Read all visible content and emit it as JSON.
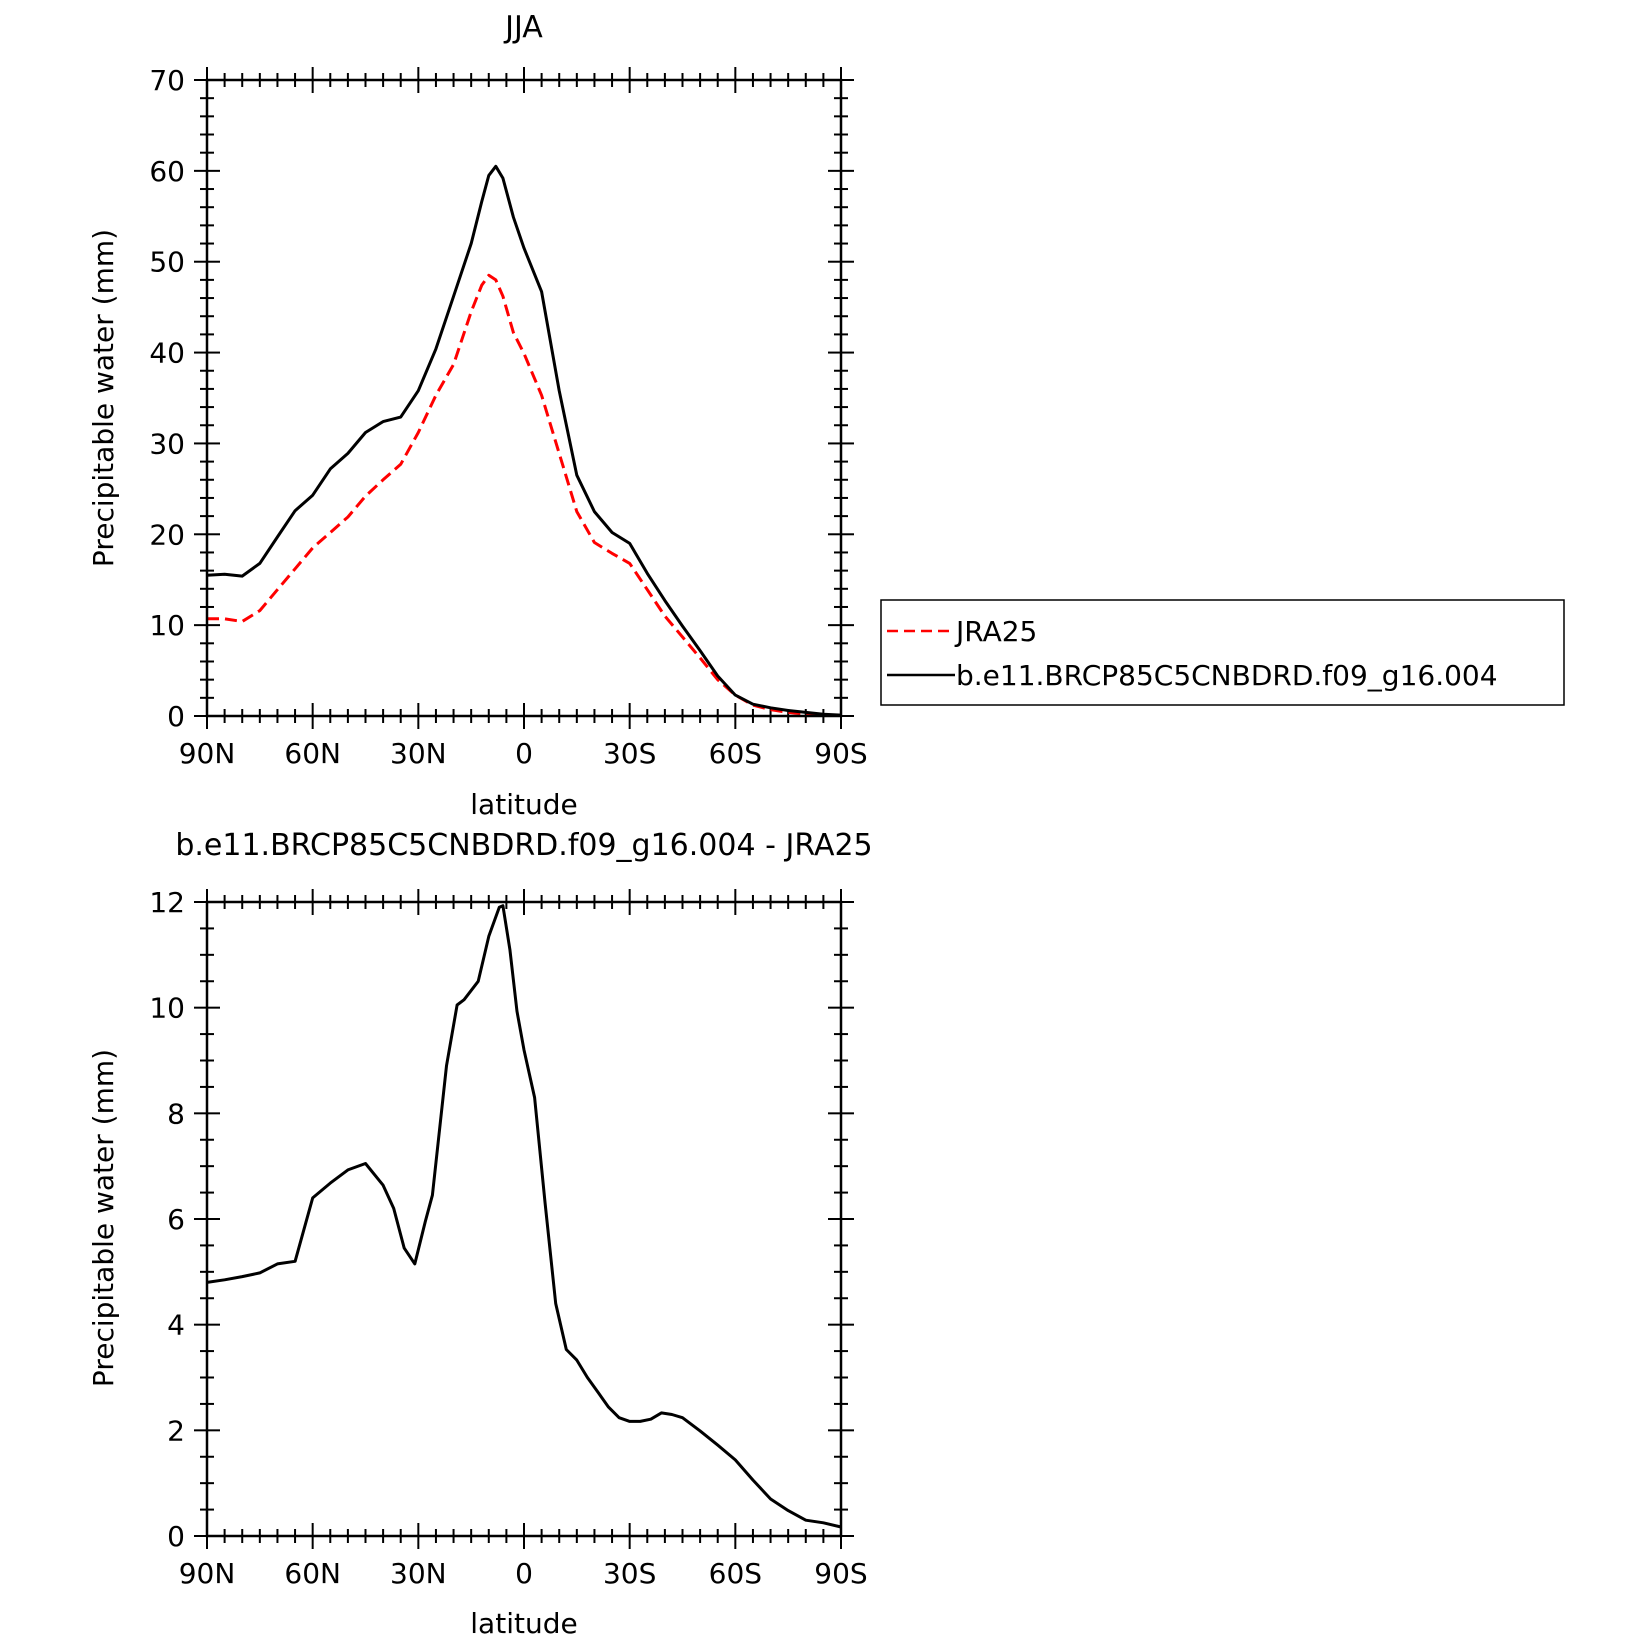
{
  "chart_data": [
    {
      "type": "line",
      "title": "JJA",
      "xlabel": "latitude",
      "ylabel": "Precipitable water (mm)",
      "xlim": [
        90,
        -90
      ],
      "ylim": [
        0,
        70
      ],
      "xticks": [
        90,
        60,
        30,
        0,
        -30,
        -60,
        -90
      ],
      "xtick_labels": [
        "90N",
        "60N",
        "30N",
        "0",
        "30S",
        "60S",
        "90S"
      ],
      "yticks": [
        0,
        10,
        20,
        30,
        40,
        50,
        60,
        70
      ],
      "ytick_labels": [
        "0",
        "10",
        "20",
        "30",
        "40",
        "50",
        "60",
        "70"
      ],
      "legend": "right",
      "series": [
        {
          "name": "JRA25",
          "color": "#ff0000",
          "style": "dashed",
          "x": [
            90,
            85,
            80,
            75,
            70,
            65,
            60,
            55,
            50,
            45,
            40,
            35,
            30,
            25,
            20,
            15,
            12,
            10,
            8,
            6,
            3,
            0,
            -5,
            -10,
            -15,
            -20,
            -25,
            -30,
            -35,
            -40,
            -45,
            -50,
            -55,
            -60,
            -65,
            -70,
            -75,
            -80,
            -85,
            -90
          ],
          "y": [
            10.7,
            10.7,
            10.4,
            11.6,
            13.9,
            16.2,
            18.5,
            20.2,
            21.9,
            24.2,
            26.0,
            27.7,
            31.2,
            35.3,
            38.7,
            44.5,
            47.4,
            48.5,
            48.0,
            46.2,
            42.2,
            39.9,
            35.3,
            28.9,
            22.5,
            19.1,
            17.9,
            16.8,
            13.9,
            11.0,
            8.7,
            6.4,
            4.0,
            2.3,
            1.2,
            0.7,
            0.4,
            0.2,
            0.1,
            0.1
          ]
        },
        {
          "name": "b.e11.BRCP85C5CNBDRD.f09_g16.004",
          "color": "#000000",
          "style": "solid",
          "x": [
            90,
            85,
            80,
            75,
            70,
            65,
            60,
            55,
            50,
            45,
            40,
            35,
            30,
            25,
            20,
            15,
            12,
            10,
            8,
            6,
            3,
            0,
            -5,
            -10,
            -15,
            -20,
            -25,
            -30,
            -35,
            -40,
            -45,
            -50,
            -55,
            -60,
            -65,
            -70,
            -75,
            -80,
            -85,
            -90
          ],
          "y": [
            15.5,
            15.6,
            15.4,
            16.8,
            19.7,
            22.6,
            24.3,
            27.2,
            28.9,
            31.2,
            32.4,
            32.9,
            35.8,
            40.4,
            46.2,
            52.0,
            56.6,
            59.5,
            60.5,
            59.2,
            54.9,
            51.5,
            46.7,
            35.8,
            26.5,
            22.5,
            20.2,
            19.0,
            15.7,
            12.7,
            9.9,
            7.2,
            4.4,
            2.3,
            1.3,
            0.9,
            0.6,
            0.4,
            0.2,
            0.1
          ]
        }
      ]
    },
    {
      "type": "line",
      "title": "b.e11.BRCP85C5CNBDRD.f09_g16.004 - JRA25",
      "xlabel": "latitude",
      "ylabel": "Precipitable water (mm)",
      "xlim": [
        90,
        -90
      ],
      "ylim": [
        0,
        12
      ],
      "xticks": [
        90,
        60,
        30,
        0,
        -30,
        -60,
        -90
      ],
      "xtick_labels": [
        "90N",
        "60N",
        "30N",
        "0",
        "30S",
        "60S",
        "90S"
      ],
      "yticks": [
        0,
        2,
        4,
        6,
        8,
        10,
        12
      ],
      "ytick_labels": [
        "0",
        "2",
        "4",
        "6",
        "8",
        "10",
        "12"
      ],
      "series": [
        {
          "color": "#000000",
          "style": "solid",
          "x": [
            90,
            85,
            80,
            75,
            70,
            65,
            60,
            55,
            50,
            45,
            40,
            37,
            34,
            31,
            28,
            26,
            22,
            19,
            17,
            13,
            10,
            7,
            6,
            4,
            2,
            0,
            -3,
            -6,
            -9,
            -12,
            -15,
            -18,
            -21,
            -24,
            -27,
            -30,
            -33,
            -36,
            -39,
            -42,
            -45,
            -50,
            -55,
            -60,
            -65,
            -70,
            -75,
            -80,
            -85,
            -90
          ],
          "y": [
            4.8,
            4.85,
            4.91,
            4.98,
            5.15,
            5.2,
            6.4,
            6.68,
            6.93,
            7.05,
            6.64,
            6.2,
            5.45,
            5.15,
            5.96,
            6.45,
            8.9,
            10.05,
            10.15,
            10.5,
            11.35,
            11.9,
            11.93,
            11.1,
            9.93,
            9.2,
            8.3,
            6.3,
            4.4,
            3.53,
            3.33,
            3.0,
            2.72,
            2.44,
            2.24,
            2.17,
            2.17,
            2.21,
            2.33,
            2.3,
            2.24,
            1.99,
            1.72,
            1.44,
            1.06,
            0.7,
            0.48,
            0.3,
            0.25,
            0.17
          ]
        }
      ]
    }
  ]
}
